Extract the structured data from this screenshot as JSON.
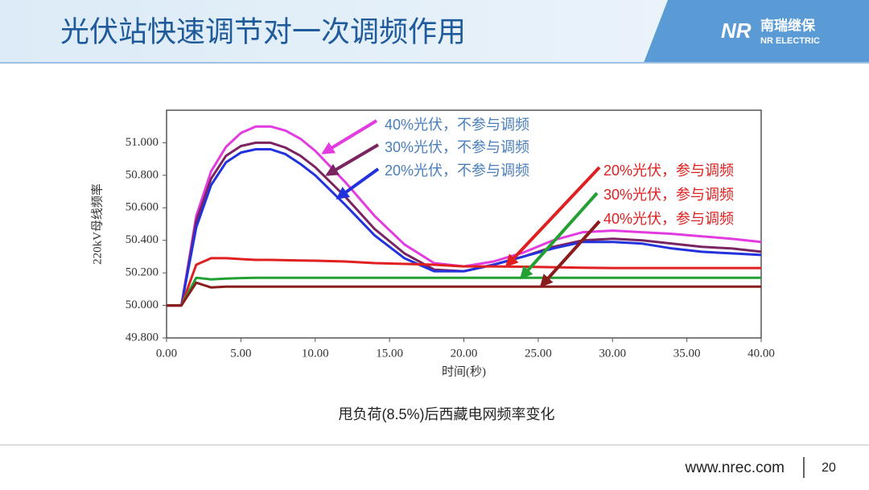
{
  "header": {
    "title": "光伏站快速调节对一次调频作用",
    "logo_cn": "南瑞继保",
    "logo_en": "NR ELECTRIC"
  },
  "chart_data": {
    "type": "line",
    "x_label": "时间(秒)",
    "y_label": "220kV母线频率",
    "x": [
      0,
      1,
      2,
      3,
      4,
      5,
      6,
      7,
      8,
      9,
      10,
      12,
      14,
      16,
      18,
      20,
      22,
      24,
      26,
      28,
      30,
      32,
      34,
      36,
      38,
      40
    ],
    "series": [
      {
        "name": "40%光伏，不参与调频",
        "color": "#e23ce0",
        "values": [
          50,
          50,
          50.55,
          50.825,
          50.975,
          51.06,
          51.1,
          51.1,
          51.075,
          51.025,
          50.95,
          50.76,
          50.55,
          50.375,
          50.26,
          50.24,
          50.27,
          50.325,
          50.4,
          50.45,
          50.46,
          50.45,
          50.44,
          50.425,
          50.41,
          50.39
        ]
      },
      {
        "name": "30%光伏，不参与调频",
        "color": "#7b2462",
        "values": [
          50,
          50,
          50.52,
          50.78,
          50.92,
          50.98,
          51.0,
          51.0,
          50.97,
          50.92,
          50.85,
          50.67,
          50.47,
          50.32,
          50.22,
          50.21,
          50.25,
          50.3,
          50.36,
          50.4,
          50.41,
          50.4,
          50.38,
          50.36,
          50.35,
          50.33
        ]
      },
      {
        "name": "20%光伏，不参与调频",
        "color": "#2233dd",
        "values": [
          50,
          50,
          50.48,
          50.74,
          50.88,
          50.94,
          50.96,
          50.96,
          50.93,
          50.87,
          50.8,
          50.62,
          50.43,
          50.29,
          50.21,
          50.21,
          50.25,
          50.3,
          50.35,
          50.39,
          50.39,
          50.38,
          50.35,
          50.33,
          50.32,
          50.31
        ]
      },
      {
        "name": "20%光伏，参与调频",
        "color": "#e02020",
        "values": [
          50,
          50,
          50.25,
          50.29,
          50.29,
          50.285,
          50.28,
          50.28,
          50.278,
          50.276,
          50.275,
          50.27,
          50.26,
          50.255,
          50.25,
          50.24,
          50.24,
          50.238,
          50.235,
          50.232,
          50.23,
          50.23,
          50.23,
          50.23,
          50.23,
          50.23
        ]
      },
      {
        "name": "30%光伏，参与调频",
        "color": "#23a033",
        "values": [
          50,
          50,
          50.17,
          50.16,
          50.165,
          50.168,
          50.17,
          50.17,
          50.17,
          50.17,
          50.17,
          50.17,
          50.17,
          50.17,
          50.17,
          50.17,
          50.17,
          50.17,
          50.17,
          50.17,
          50.17,
          50.17,
          50.17,
          50.17,
          50.17,
          50.17
        ]
      },
      {
        "name": "40%光伏，参与调频",
        "color": "#8a1c1c",
        "values": [
          50,
          50,
          50.14,
          50.11,
          50.115,
          50.115,
          50.115,
          50.115,
          50.115,
          50.115,
          50.115,
          50.115,
          50.115,
          50.115,
          50.115,
          50.115,
          50.115,
          50.115,
          50.115,
          50.115,
          50.115,
          50.115,
          50.115,
          50.115,
          50.115,
          50.115
        ]
      }
    ],
    "xlim": [
      0,
      40
    ],
    "xticks": [
      {
        "value": 0,
        "label": "0.00"
      },
      {
        "value": 5,
        "label": "5.00"
      },
      {
        "value": 10,
        "label": "10.00"
      },
      {
        "value": 15,
        "label": "15.00"
      },
      {
        "value": 20,
        "label": "20.00"
      },
      {
        "value": 25,
        "label": "25.00"
      },
      {
        "value": 30,
        "label": "30.00"
      },
      {
        "value": 35,
        "label": "35.00"
      },
      {
        "value": 40,
        "label": "40.00"
      }
    ],
    "ylim": [
      49.8,
      51.2
    ],
    "yticks": [
      {
        "value": 49.8,
        "label": "49.800"
      },
      {
        "value": 50,
        "label": "50.000"
      },
      {
        "value": 50.2,
        "label": "50.200"
      },
      {
        "value": 50.4,
        "label": "50.400"
      },
      {
        "value": 50.6,
        "label": "50.600"
      },
      {
        "value": 50.8,
        "label": "50.800"
      },
      {
        "value": 51,
        "label": "51.000"
      }
    ],
    "grid": false,
    "caption": "甩负荷(8.5%)后西藏电网频率变化"
  },
  "footer": {
    "url": "www.nrec.com",
    "page": "20"
  }
}
